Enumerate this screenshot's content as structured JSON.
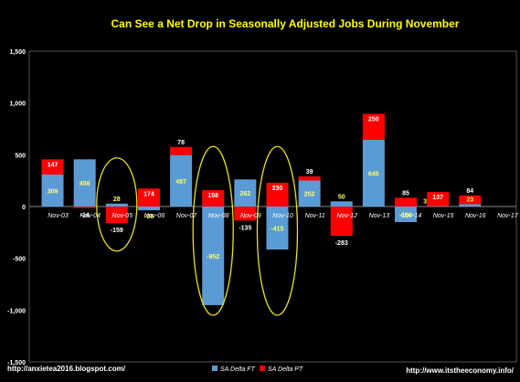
{
  "chart_data": {
    "type": "bar",
    "stacked": true,
    "title": "Can See a Net Drop in Seasonally Adjusted Jobs During November",
    "xlabel": "",
    "ylabel": "",
    "ylim": [
      -1500,
      1500
    ],
    "yticks": [
      -1500,
      -1000,
      -500,
      0,
      500,
      1000,
      1500
    ],
    "ytick_labels": [
      "-1,500",
      "-1,000",
      "-500",
      "0",
      "500",
      "1,000",
      "1,500"
    ],
    "categories": [
      "Nov-03",
      "Nov-04",
      "Nov-05",
      "Nov-06",
      "Nov-07",
      "Nov-08",
      "Nov-09",
      "Nov-10",
      "Nov-11",
      "Nov-12",
      "Nov-13",
      "Nov-14",
      "Nov-15",
      "Nov-16",
      "Nov-17"
    ],
    "series": [
      {
        "name": "SA Delta FT",
        "color": "#5b9bd5",
        "values": [
          309,
          456,
          28,
          -36,
          497,
          -952,
          262,
          -415,
          252,
          50,
          645,
          -150,
          3,
          23,
          null
        ],
        "labels": [
          "309",
          "456",
          "28",
          "-36",
          "497",
          "-952",
          "262",
          "-415",
          "252",
          "50",
          "645",
          "-150",
          "3",
          "23",
          ""
        ]
      },
      {
        "name": "SA Delta PT",
        "color": "#ff0000",
        "values": [
          147,
          -14,
          -159,
          174,
          78,
          158,
          -135,
          230,
          39,
          -283,
          250,
          85,
          137,
          84,
          null
        ],
        "labels": [
          "147",
          "-14",
          "-159",
          "174",
          "78",
          "158",
          "-135",
          "230",
          "39",
          "-283",
          "250",
          "85",
          "137",
          "84",
          ""
        ]
      }
    ],
    "grid": false,
    "legend": "bottom",
    "highlight_ellipses": [
      "Nov-05",
      "Nov-08",
      "Nov-10"
    ],
    "colors": {
      "background": "#000000",
      "plot_border": "#555555",
      "title": "#ffff00",
      "axis_text": "#ffffff",
      "ellipse": "#e8e020",
      "ft_label_in_bar": "#ffff66",
      "pt_label_in_bar": "#ffffff"
    }
  },
  "footer": {
    "left_url": "http://anxietea2016.blogspot.com/",
    "right_url": "http://www.itstheeconomy.info/"
  }
}
